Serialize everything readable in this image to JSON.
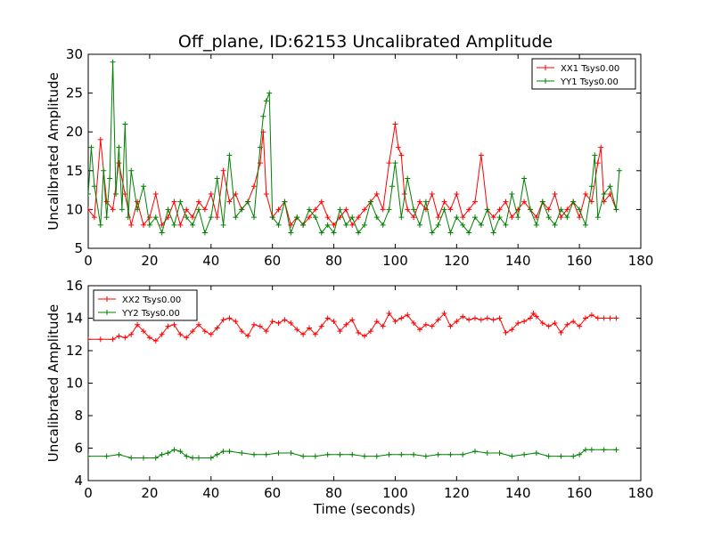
{
  "figure": {
    "title": "Off_plane, ID:62153 Uncalibrated Amplitude"
  },
  "chart_data": [
    {
      "type": "line",
      "ylabel": "Uncalibrated Amplitude",
      "xlabel": "",
      "xlim": [
        0,
        180
      ],
      "ylim": [
        5,
        30
      ],
      "xticks": [
        "0",
        "20",
        "40",
        "60",
        "80",
        "100",
        "120",
        "140",
        "160",
        "180"
      ],
      "yticks": [
        "5",
        "10",
        "15",
        "20",
        "25",
        "30"
      ],
      "legend_position": "top-right",
      "series": [
        {
          "name": "XX1 Tsys0.00",
          "color": "#ff0000",
          "x": [
            0,
            2,
            4,
            6,
            8,
            10,
            12,
            14,
            16,
            18,
            20,
            22,
            24,
            26,
            28,
            30,
            32,
            34,
            36,
            38,
            40,
            42,
            44,
            46,
            48,
            50,
            52,
            54,
            56,
            57,
            58,
            60,
            62,
            64,
            66,
            68,
            70,
            72,
            74,
            76,
            78,
            80,
            82,
            84,
            86,
            88,
            90,
            92,
            94,
            96,
            98,
            100,
            101,
            102,
            103,
            104,
            106,
            108,
            110,
            112,
            114,
            116,
            118,
            120,
            122,
            124,
            126,
            128,
            130,
            132,
            134,
            136,
            138,
            140,
            142,
            144,
            146,
            148,
            150,
            152,
            154,
            156,
            158,
            160,
            162,
            164,
            166,
            167,
            168,
            170,
            172
          ],
          "y": [
            10,
            9,
            19,
            11,
            10,
            16,
            12,
            8,
            11,
            8,
            9,
            12,
            8,
            9,
            11,
            8,
            10,
            9,
            11,
            10,
            12,
            9,
            15,
            11,
            12,
            10,
            11,
            13,
            16,
            20,
            12,
            9,
            10,
            11,
            8,
            9,
            8,
            9,
            10,
            11,
            9,
            8,
            9,
            10,
            8,
            9,
            10,
            11,
            12,
            10,
            16,
            21,
            18,
            17,
            12,
            10,
            9,
            11,
            10,
            12,
            9,
            11,
            10,
            12,
            9,
            10,
            11,
            17,
            10,
            9,
            10,
            11,
            9,
            10,
            11,
            10,
            9,
            11,
            10,
            12,
            9,
            10,
            11,
            9,
            12,
            11,
            16,
            18,
            11,
            12,
            10
          ]
        },
        {
          "name": "YY1 Tsys0.00",
          "color": "#008000",
          "x": [
            0,
            1,
            2,
            4,
            5,
            6,
            7,
            8,
            9,
            10,
            11,
            12,
            13,
            14,
            16,
            18,
            20,
            22,
            24,
            26,
            28,
            30,
            32,
            34,
            36,
            38,
            40,
            42,
            44,
            46,
            48,
            50,
            52,
            54,
            56,
            57,
            58,
            59,
            60,
            62,
            64,
            66,
            68,
            70,
            72,
            74,
            76,
            78,
            80,
            82,
            84,
            86,
            88,
            90,
            92,
            94,
            96,
            98,
            99,
            100,
            102,
            104,
            106,
            108,
            110,
            112,
            114,
            116,
            118,
            120,
            122,
            124,
            126,
            128,
            130,
            132,
            134,
            136,
            138,
            140,
            142,
            144,
            146,
            148,
            150,
            152,
            154,
            156,
            158,
            160,
            162,
            164,
            165,
            166,
            168,
            170,
            172,
            173
          ],
          "y": [
            12,
            18,
            13,
            8,
            15,
            9,
            14,
            29,
            12,
            18,
            10,
            21,
            9,
            15,
            10,
            13,
            8,
            9,
            7,
            10,
            8,
            11,
            9,
            8,
            10,
            7,
            9,
            14,
            8,
            17,
            9,
            10,
            11,
            9,
            18,
            22,
            24,
            25,
            9,
            8,
            11,
            7,
            9,
            8,
            10,
            9,
            7,
            8,
            7,
            10,
            8,
            9,
            7,
            8,
            11,
            9,
            8,
            10,
            13,
            16,
            9,
            14,
            10,
            8,
            11,
            7,
            8,
            10,
            7,
            9,
            8,
            7,
            9,
            8,
            10,
            7,
            9,
            8,
            12,
            9,
            14,
            10,
            8,
            11,
            9,
            8,
            10,
            9,
            11,
            10,
            8,
            13,
            17,
            9,
            12,
            13,
            10,
            15
          ]
        }
      ]
    },
    {
      "type": "line",
      "ylabel": "Uncalibrated Amplitude",
      "xlabel": "Time (seconds)",
      "xlim": [
        0,
        180
      ],
      "ylim": [
        4,
        16
      ],
      "xticks": [
        "0",
        "20",
        "40",
        "60",
        "80",
        "100",
        "120",
        "140",
        "160",
        "180"
      ],
      "yticks": [
        "4",
        "6",
        "8",
        "10",
        "12",
        "14",
        "16"
      ],
      "legend_position": "top-left",
      "series": [
        {
          "name": "XX2 Tsys0.00",
          "color": "#ff0000",
          "x": [
            0,
            4,
            8,
            10,
            12,
            14,
            16,
            18,
            20,
            22,
            24,
            26,
            28,
            30,
            32,
            34,
            36,
            38,
            40,
            42,
            44,
            46,
            48,
            50,
            52,
            54,
            56,
            58,
            60,
            62,
            64,
            66,
            68,
            70,
            72,
            74,
            76,
            78,
            80,
            82,
            84,
            86,
            88,
            90,
            92,
            94,
            96,
            98,
            100,
            102,
            104,
            106,
            108,
            110,
            112,
            114,
            116,
            118,
            120,
            122,
            124,
            126,
            128,
            130,
            132,
            134,
            136,
            138,
            140,
            142,
            144,
            145,
            146,
            148,
            150,
            152,
            154,
            156,
            158,
            160,
            162,
            164,
            166,
            168,
            170,
            172
          ],
          "y": [
            12.7,
            12.7,
            12.7,
            12.9,
            12.8,
            13.0,
            13.6,
            13.2,
            12.8,
            12.6,
            13.0,
            13.5,
            13.6,
            13.0,
            12.8,
            13.2,
            13.6,
            13.2,
            13.0,
            13.4,
            13.9,
            14.0,
            13.8,
            13.2,
            12.9,
            13.6,
            13.5,
            13.2,
            13.8,
            13.7,
            13.9,
            13.7,
            13.3,
            13.0,
            13.4,
            13.0,
            13.5,
            14.0,
            13.8,
            13.2,
            13.6,
            13.9,
            13.1,
            12.9,
            13.2,
            13.8,
            13.5,
            14.3,
            13.8,
            14.0,
            14.2,
            13.7,
            13.3,
            13.6,
            13.5,
            13.9,
            14.3,
            13.5,
            13.8,
            14.1,
            13.9,
            14.0,
            13.9,
            14.0,
            13.9,
            14.0,
            13.1,
            13.3,
            13.7,
            13.8,
            14.0,
            14.3,
            14.1,
            13.7,
            13.5,
            13.7,
            13.1,
            13.6,
            13.8,
            13.5,
            14.0,
            14.2,
            14.0,
            14.0,
            14.0,
            14.0
          ]
        },
        {
          "name": "YY2 Tsys0.00",
          "color": "#008000",
          "x": [
            0,
            6,
            10,
            14,
            18,
            22,
            24,
            26,
            28,
            30,
            32,
            34,
            36,
            40,
            42,
            44,
            46,
            50,
            54,
            58,
            62,
            66,
            70,
            74,
            78,
            82,
            86,
            90,
            94,
            98,
            102,
            106,
            110,
            114,
            118,
            122,
            126,
            130,
            134,
            138,
            142,
            146,
            150,
            154,
            158,
            160,
            162,
            164,
            168,
            172
          ],
          "y": [
            5.5,
            5.5,
            5.6,
            5.4,
            5.4,
            5.4,
            5.6,
            5.7,
            5.9,
            5.8,
            5.5,
            5.4,
            5.4,
            5.4,
            5.6,
            5.8,
            5.8,
            5.7,
            5.6,
            5.6,
            5.7,
            5.7,
            5.5,
            5.5,
            5.6,
            5.6,
            5.6,
            5.5,
            5.5,
            5.6,
            5.6,
            5.6,
            5.5,
            5.6,
            5.6,
            5.6,
            5.8,
            5.7,
            5.7,
            5.5,
            5.6,
            5.7,
            5.5,
            5.5,
            5.5,
            5.6,
            5.9,
            5.9,
            5.9,
            5.9
          ]
        }
      ]
    }
  ]
}
